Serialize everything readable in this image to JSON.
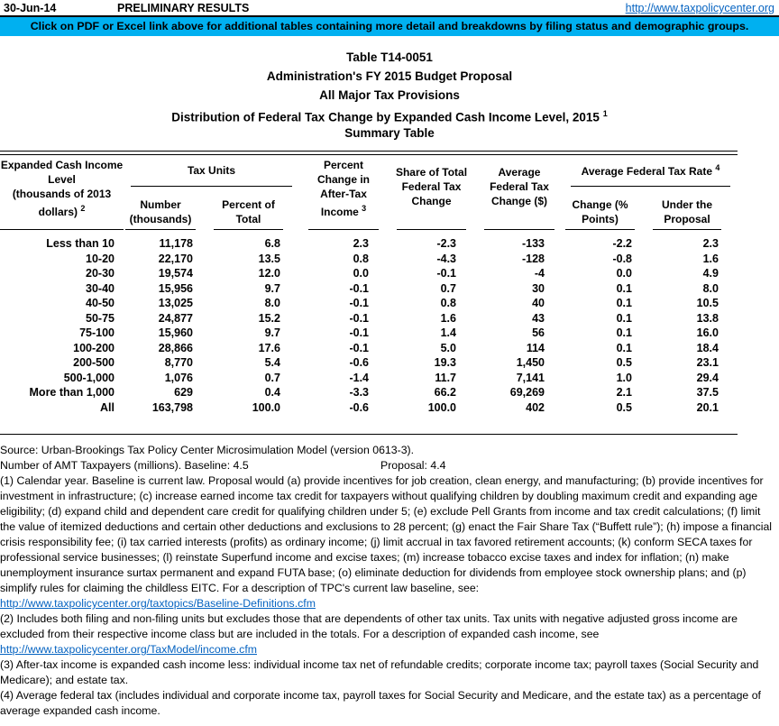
{
  "header": {
    "date": "30-Jun-14",
    "status": "PRELIMINARY RESULTS",
    "site_url": "http://www.taxpolicycenter.org",
    "banner": "Click on PDF or Excel link above for additional tables containing more detail and breakdowns by filing status and demographic groups."
  },
  "title": {
    "line1": "Table T14-0051",
    "line2": "Administration's FY 2015 Budget Proposal",
    "line3": "All Major Tax Provisions",
    "line4": "Distribution of Federal Tax Change by Expanded Cash Income Level, 2015",
    "line4_sup": "1",
    "line5": "Summary Table"
  },
  "table": {
    "header": {
      "income_level": {
        "label": "Expanded Cash Income\nLevel\n(thousands of 2013\ndollars)",
        "sup": "2"
      },
      "tax_units": {
        "label": "Tax Units"
      },
      "number": {
        "label": "Number\n(thousands)"
      },
      "percent_of_total": {
        "label": "Percent of\nTotal"
      },
      "pct_change_after_tax_income": {
        "label": "Percent\nChange in\nAfter-Tax\nIncome",
        "sup": "3"
      },
      "share_of_total": {
        "label": "Share of Total\nFederal Tax\nChange"
      },
      "average_change": {
        "label": "Average\nFederal Tax\nChange ($)"
      },
      "avg_federal_tax_rate": {
        "label": "Average Federal Tax Rate",
        "sup": "4"
      },
      "change_points": {
        "label": "Change (%\nPoints)"
      },
      "under_proposal": {
        "label": "Under the\nProposal"
      }
    },
    "rows": [
      [
        "Less than 10",
        "11,178",
        "6.8",
        "2.3",
        "-2.3",
        "-133",
        "-2.2",
        "2.3"
      ],
      [
        "10-20",
        "22,170",
        "13.5",
        "0.8",
        "-4.3",
        "-128",
        "-0.8",
        "1.6"
      ],
      [
        "20-30",
        "19,574",
        "12.0",
        "0.0",
        "-0.1",
        "-4",
        "0.0",
        "4.9"
      ],
      [
        "30-40",
        "15,956",
        "9.7",
        "-0.1",
        "0.7",
        "30",
        "0.1",
        "8.0"
      ],
      [
        "40-50",
        "13,025",
        "8.0",
        "-0.1",
        "0.8",
        "40",
        "0.1",
        "10.5"
      ],
      [
        "50-75",
        "24,877",
        "15.2",
        "-0.1",
        "1.6",
        "43",
        "0.1",
        "13.8"
      ],
      [
        "75-100",
        "15,960",
        "9.7",
        "-0.1",
        "1.4",
        "56",
        "0.1",
        "16.0"
      ],
      [
        "100-200",
        "28,866",
        "17.6",
        "-0.1",
        "5.0",
        "114",
        "0.1",
        "18.4"
      ],
      [
        "200-500",
        "8,770",
        "5.4",
        "-0.6",
        "19.3",
        "1,450",
        "0.5",
        "23.1"
      ],
      [
        "500-1,000",
        "1,076",
        "0.7",
        "-1.4",
        "11.7",
        "7,141",
        "1.0",
        "29.4"
      ],
      [
        "More than 1,000",
        "629",
        "0.4",
        "-3.3",
        "66.2",
        "69,269",
        "2.1",
        "37.5"
      ],
      [
        "All",
        "163,798",
        "100.0",
        "-0.6",
        "100.0",
        "402",
        "0.5",
        "20.1"
      ]
    ]
  },
  "notes": {
    "source": "Source: Urban-Brookings Tax Policy Center Microsimulation Model (version 0613-3).",
    "amt_baseline": "Number of AMT Taxpayers (millions).  Baseline: 4.5",
    "amt_proposal": "Proposal: 4.4",
    "fn1": "(1) Calendar year. Baseline is current law.  Proposal would (a) provide incentives for job creation, clean energy, and manufacturing; (b) provide incentives for investment in infrastructure; (c) increase earned income tax credit for taxpayers without qualifying children by doubling maximum credit and expanding age eligibility; (d) expand child and dependent care credit for qualifying children under 5; (e) exclude Pell Grants from income and tax credit calculations; (f) limit the value of itemized deductions and certain other deductions and exclusions to 28 percent; (g) enact the Fair Share Tax (“Buffett rule”); (h) impose a financial crisis responsibility fee; (i) tax carried interests (profits) as ordinary income; (j) limit accrual in tax favored retirement accounts; (k) conform SECA taxes for professional service businesses; (l) reinstate Superfund income and excise taxes; (m) increase tobacco excise taxes and index for inflation; (n) make unemployment insurance surtax permanent and expand FUTA base; (o) eliminate deduction for dividends from employee stock ownership plans; and (p) simplify rules for claiming the childless EITC. For a description of TPC's current law baseline, see:",
    "fn1_link": "http://www.taxpolicycenter.org/taxtopics/Baseline-Definitions.cfm",
    "fn2": "(2) Includes both filing and non-filing units but excludes those that are dependents of other tax units. Tax units with negative adjusted gross income are excluded from their respective income class but are included in the totals. For a description of expanded cash income, see",
    "fn2_link": "http://www.taxpolicycenter.org/TaxModel/income.cfm",
    "fn3": "(3) After-tax income is expanded cash income less: individual income tax net of refundable credits; corporate income tax; payroll taxes (Social Security and Medicare); and estate tax.",
    "fn4": "(4) Average federal tax (includes individual and corporate income tax, payroll taxes for Social Security and Medicare, and the estate tax) as a percentage of average expanded cash income."
  },
  "colors": {
    "banner_bg": "#00B0F0",
    "link": "#0563C1"
  }
}
